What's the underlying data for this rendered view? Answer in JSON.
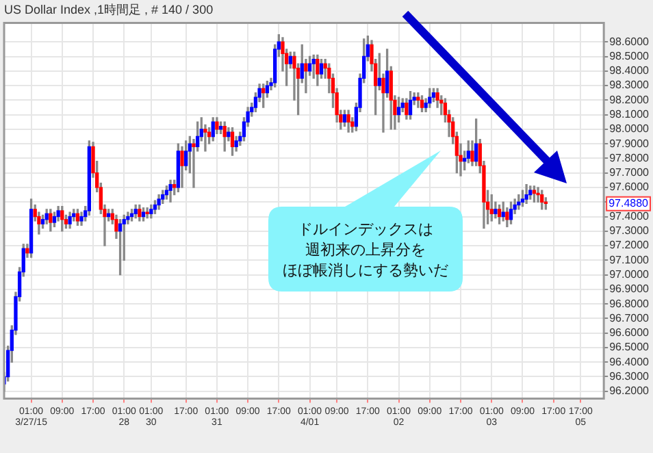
{
  "chart_data": {
    "type": "candlestick",
    "title": "US Dollar Index ,1時間足 , # 140 / 300",
    "categories": [
      null,
      null,
      null,
      null,
      null,
      null,
      null,
      "01:00\n3/27/15",
      null,
      null,
      null,
      null,
      null,
      null,
      null,
      "09:00",
      null,
      null,
      null,
      null,
      null,
      null,
      null,
      "17:00",
      null,
      null,
      null,
      null,
      null,
      null,
      null,
      "01:00\n28",
      null,
      null,
      null,
      null,
      null,
      null,
      "01:00\n30",
      null,
      null,
      null,
      null,
      null,
      null,
      null,
      null,
      "17:00",
      null,
      null,
      null,
      null,
      null,
      null,
      null,
      "01:00\n31",
      null,
      null,
      null,
      null,
      null,
      null,
      null,
      "09:00",
      null,
      null,
      null,
      null,
      null,
      null,
      null,
      "17:00",
      null,
      null,
      null,
      null,
      null,
      null,
      null,
      "01:00\n4/01",
      null,
      null,
      null,
      null,
      null,
      null,
      "09:00",
      null,
      null,
      null,
      null,
      null,
      null,
      null,
      "17:00",
      null,
      null,
      null,
      null,
      null,
      null,
      null,
      "01:00\n02",
      null,
      null,
      null,
      null,
      null,
      null,
      null,
      "09:00",
      null,
      null,
      null,
      null,
      null,
      null,
      null,
      "17:00",
      null,
      null,
      null,
      null,
      null,
      null,
      null,
      "01:00\n03",
      null,
      null,
      null,
      null,
      null,
      null,
      null,
      "09:00",
      null,
      null,
      null,
      null,
      null,
      null,
      null,
      "17:00",
      null,
      null,
      null,
      null,
      null,
      null,
      "17:00\n05",
      null,
      null,
      null,
      null,
      null,
      null
    ],
    "ohlc": [
      [
        96.25,
        96.33,
        96.2,
        96.3
      ],
      [
        96.3,
        96.51,
        96.27,
        96.48
      ],
      [
        96.48,
        96.65,
        96.4,
        96.62
      ],
      [
        96.62,
        96.88,
        96.59,
        96.85
      ],
      [
        96.85,
        97.05,
        96.82,
        97.02
      ],
      [
        97.02,
        97.21,
        96.99,
        97.18
      ],
      [
        97.18,
        97.21,
        97.12,
        97.15
      ],
      [
        97.15,
        97.52,
        97.12,
        97.45
      ],
      [
        97.45,
        97.48,
        97.37,
        97.4
      ],
      [
        97.4,
        97.43,
        97.28,
        97.35
      ],
      [
        97.35,
        97.41,
        97.32,
        97.38
      ],
      [
        97.38,
        97.45,
        97.35,
        97.42
      ],
      [
        97.42,
        97.45,
        97.3,
        97.36
      ],
      [
        97.36,
        97.43,
        97.33,
        97.4
      ],
      [
        97.4,
        97.47,
        97.37,
        97.44
      ],
      [
        97.44,
        97.47,
        97.3,
        97.38
      ],
      [
        97.38,
        97.41,
        97.32,
        97.35
      ],
      [
        97.35,
        97.43,
        97.32,
        97.4
      ],
      [
        97.4,
        97.45,
        97.37,
        97.42
      ],
      [
        97.42,
        97.45,
        97.34,
        97.37
      ],
      [
        97.37,
        97.43,
        97.34,
        97.4
      ],
      [
        97.4,
        97.47,
        97.37,
        97.44
      ],
      [
        97.44,
        97.92,
        97.41,
        97.88
      ],
      [
        97.88,
        97.91,
        97.67,
        97.7
      ],
      [
        97.7,
        97.78,
        97.57,
        97.6
      ],
      [
        97.6,
        97.63,
        97.42,
        97.45
      ],
      [
        97.45,
        97.48,
        97.2,
        97.4
      ],
      [
        97.4,
        97.45,
        97.37,
        97.42
      ],
      [
        97.42,
        97.45,
        97.35,
        97.38
      ],
      [
        97.38,
        97.41,
        97.25,
        97.3
      ],
      [
        97.3,
        97.38,
        97.0,
        97.35
      ],
      [
        97.35,
        97.41,
        97.1,
        97.38
      ],
      [
        97.38,
        97.43,
        97.35,
        97.4
      ],
      [
        97.4,
        97.45,
        97.37,
        97.42
      ],
      [
        97.42,
        97.48,
        97.39,
        97.45
      ],
      [
        97.45,
        97.48,
        97.37,
        97.4
      ],
      [
        97.4,
        97.46,
        97.37,
        97.43
      ],
      [
        97.43,
        97.46,
        97.39,
        97.42
      ],
      [
        97.42,
        97.48,
        97.39,
        97.45
      ],
      [
        97.45,
        97.51,
        97.42,
        97.48
      ],
      [
        97.48,
        97.55,
        97.45,
        97.52
      ],
      [
        97.52,
        97.58,
        97.49,
        97.55
      ],
      [
        97.55,
        97.61,
        97.52,
        97.58
      ],
      [
        97.58,
        97.65,
        97.5,
        97.62
      ],
      [
        97.62,
        97.65,
        97.55,
        97.6
      ],
      [
        97.6,
        97.9,
        97.57,
        97.85
      ],
      [
        97.85,
        97.88,
        97.6,
        97.75
      ],
      [
        97.75,
        97.92,
        97.72,
        97.85
      ],
      [
        97.85,
        97.95,
        97.7,
        97.9
      ],
      [
        97.9,
        97.93,
        97.6,
        97.88
      ],
      [
        97.88,
        98.05,
        97.85,
        97.95
      ],
      [
        97.95,
        98.08,
        97.92,
        98.0
      ],
      [
        98.0,
        98.03,
        97.85,
        97.98
      ],
      [
        97.98,
        98.01,
        97.9,
        97.95
      ],
      [
        97.95,
        98.08,
        97.92,
        98.05
      ],
      [
        98.05,
        98.08,
        97.97,
        98.0
      ],
      [
        98.0,
        98.05,
        97.97,
        98.02
      ],
      [
        98.02,
        98.05,
        97.85,
        97.95
      ],
      [
        97.95,
        98.01,
        97.92,
        97.98
      ],
      [
        97.98,
        98.01,
        97.82,
        97.88
      ],
      [
        97.88,
        97.95,
        97.85,
        97.92
      ],
      [
        97.92,
        97.98,
        97.89,
        97.95
      ],
      [
        97.95,
        98.08,
        97.92,
        98.05
      ],
      [
        98.05,
        98.15,
        98.02,
        98.12
      ],
      [
        98.12,
        98.18,
        98.09,
        98.15
      ],
      [
        98.15,
        98.25,
        98.12,
        98.22
      ],
      [
        98.22,
        98.31,
        98.19,
        98.28
      ],
      [
        98.28,
        98.31,
        98.15,
        98.25
      ],
      [
        98.25,
        98.33,
        98.22,
        98.3
      ],
      [
        98.3,
        98.35,
        98.27,
        98.32
      ],
      [
        98.32,
        98.58,
        98.29,
        98.55
      ],
      [
        98.55,
        98.65,
        98.5,
        98.6
      ],
      [
        98.6,
        98.63,
        98.4,
        98.52
      ],
      [
        98.52,
        98.55,
        98.3,
        98.45
      ],
      [
        98.45,
        98.53,
        98.42,
        98.5
      ],
      [
        98.5,
        98.53,
        98.2,
        98.42
      ],
      [
        98.42,
        98.45,
        98.1,
        98.35
      ],
      [
        98.35,
        98.58,
        98.32,
        98.45
      ],
      [
        98.45,
        98.48,
        98.25,
        98.4
      ],
      [
        98.4,
        98.5,
        98.37,
        98.45
      ],
      [
        98.45,
        98.51,
        98.35,
        98.48
      ],
      [
        98.48,
        98.51,
        98.3,
        98.38
      ],
      [
        98.38,
        98.48,
        98.35,
        98.45
      ],
      [
        98.45,
        98.48,
        98.35,
        98.42
      ],
      [
        98.42,
        98.45,
        98.25,
        98.35
      ],
      [
        98.35,
        98.38,
        98.15,
        98.25
      ],
      [
        98.25,
        98.28,
        98.05,
        98.1
      ],
      [
        98.1,
        98.13,
        98.0,
        98.05
      ],
      [
        98.05,
        98.13,
        98.02,
        98.1
      ],
      [
        98.1,
        98.13,
        97.98,
        98.05
      ],
      [
        98.05,
        98.08,
        97.98,
        98.02
      ],
      [
        98.02,
        98.18,
        97.99,
        98.15
      ],
      [
        98.15,
        98.38,
        98.12,
        98.35
      ],
      [
        98.35,
        98.62,
        98.32,
        98.5
      ],
      [
        98.5,
        98.64,
        98.47,
        98.58
      ],
      [
        98.58,
        98.61,
        98.4,
        98.45
      ],
      [
        98.45,
        98.48,
        98.1,
        98.3
      ],
      [
        98.3,
        98.52,
        98.27,
        98.35
      ],
      [
        98.35,
        98.38,
        97.98,
        98.25
      ],
      [
        98.25,
        98.55,
        98.22,
        98.4
      ],
      [
        98.4,
        98.43,
        98.0,
        98.2
      ],
      [
        98.2,
        98.23,
        98.0,
        98.1
      ],
      [
        98.1,
        98.22,
        98.05,
        98.15
      ],
      [
        98.15,
        98.21,
        98.12,
        98.18
      ],
      [
        98.18,
        98.21,
        98.07,
        98.1
      ],
      [
        98.1,
        98.26,
        98.07,
        98.2
      ],
      [
        98.2,
        98.25,
        98.17,
        98.22
      ],
      [
        98.22,
        98.25,
        98.15,
        98.2
      ],
      [
        98.2,
        98.23,
        98.12,
        98.15
      ],
      [
        98.15,
        98.21,
        98.12,
        98.18
      ],
      [
        98.18,
        98.28,
        98.15,
        98.22
      ],
      [
        98.22,
        98.28,
        98.19,
        98.25
      ],
      [
        98.25,
        98.28,
        98.15,
        98.2
      ],
      [
        98.2,
        98.23,
        98.1,
        98.18
      ],
      [
        98.18,
        98.21,
        98.05,
        98.1
      ],
      [
        98.1,
        98.13,
        97.95,
        98.05
      ],
      [
        98.05,
        98.08,
        97.9,
        97.95
      ],
      [
        97.95,
        97.98,
        97.7,
        97.82
      ],
      [
        97.82,
        97.9,
        97.68,
        97.78
      ],
      [
        97.78,
        97.85,
        97.72,
        97.8
      ],
      [
        97.8,
        97.92,
        97.77,
        97.85
      ],
      [
        97.85,
        97.92,
        97.75,
        97.78
      ],
      [
        97.78,
        98.07,
        97.75,
        97.9
      ],
      [
        97.9,
        97.93,
        97.7,
        97.75
      ],
      [
        97.75,
        97.78,
        97.32,
        97.5
      ],
      [
        97.5,
        97.58,
        97.35,
        97.45
      ],
      [
        97.45,
        97.55,
        97.37,
        97.42
      ],
      [
        97.42,
        97.5,
        97.39,
        97.45
      ],
      [
        97.45,
        97.48,
        97.35,
        97.4
      ],
      [
        97.4,
        97.5,
        97.37,
        97.43
      ],
      [
        97.43,
        97.46,
        97.33,
        97.38
      ],
      [
        97.38,
        97.5,
        97.35,
        97.45
      ],
      [
        97.45,
        97.52,
        97.42,
        97.48
      ],
      [
        97.48,
        97.55,
        97.45,
        97.5
      ],
      [
        97.5,
        97.58,
        97.47,
        97.52
      ],
      [
        97.52,
        97.62,
        97.49,
        97.55
      ],
      [
        97.55,
        97.61,
        97.52,
        97.58
      ],
      [
        97.58,
        97.61,
        97.5,
        97.56
      ],
      [
        97.56,
        97.6,
        97.5,
        97.55
      ],
      [
        97.55,
        97.58,
        97.45,
        97.5
      ],
      [
        97.5,
        97.53,
        97.45,
        97.49
      ],
      null,
      null,
      null,
      null,
      null,
      null,
      null,
      null,
      null,
      null,
      null,
      null,
      null,
      null,
      null
    ],
    "ylim": [
      96.15,
      98.73
    ],
    "yticks": [
      {
        "value": 96.2,
        "label": "96.2000"
      },
      {
        "value": 96.3,
        "label": "96.3000"
      },
      {
        "value": 96.4,
        "label": "96.4000"
      },
      {
        "value": 96.5,
        "label": "96.5000"
      },
      {
        "value": 96.6,
        "label": "96.6000"
      },
      {
        "value": 96.7,
        "label": "96.7000"
      },
      {
        "value": 96.8,
        "label": "96.8000"
      },
      {
        "value": 96.9,
        "label": "96.9000"
      },
      {
        "value": 97.0,
        "label": "97.0000"
      },
      {
        "value": 97.1,
        "label": "97.1000"
      },
      {
        "value": 97.2,
        "label": "97.2000"
      },
      {
        "value": 97.3,
        "label": "97.3000"
      },
      {
        "value": 97.4,
        "label": "97.4000"
      },
      {
        "value": 97.5,
        "label": null
      },
      {
        "value": 97.6,
        "label": "97.6000"
      },
      {
        "value": 97.7,
        "label": "97.7000"
      },
      {
        "value": 97.8,
        "label": "97.8000"
      },
      {
        "value": 97.9,
        "label": "97.9000"
      },
      {
        "value": 98.0,
        "label": "98.0000"
      },
      {
        "value": 98.1,
        "label": "98.1000"
      },
      {
        "value": 98.2,
        "label": "98.2000"
      },
      {
        "value": 98.3,
        "label": "98.3000"
      },
      {
        "value": 98.4,
        "label": "98.4000"
      },
      {
        "value": 98.5,
        "label": "98.5000"
      },
      {
        "value": 98.6,
        "label": "98.6000"
      }
    ],
    "grid": true,
    "annotations": [
      "ドルインデックスは",
      "週初来の上昇分を",
      "ほぼ帳消しにする勢いだ",
      {
        "text": "97.4880",
        "y": 97.488
      }
    ]
  }
}
